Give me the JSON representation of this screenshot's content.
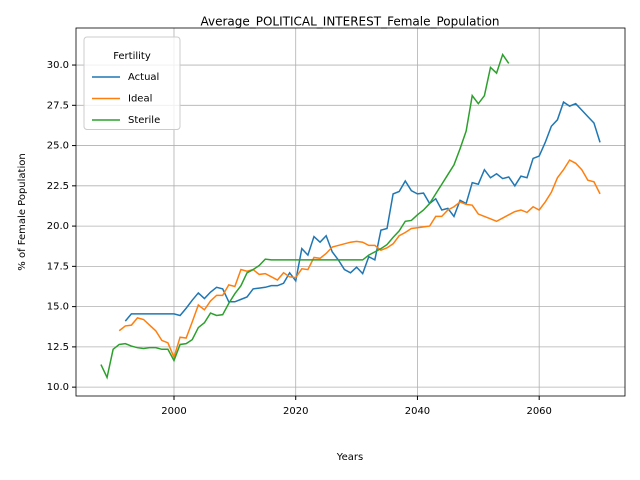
{
  "chart_data": {
    "type": "line",
    "title": "Average_POLITICAL_INTEREST_Female_Population",
    "x_label": "Years",
    "y_label": "% of Female Population",
    "x": [
      1988,
      1989,
      1990,
      1991,
      1992,
      1993,
      1994,
      1995,
      1996,
      1997,
      1998,
      1999,
      2000,
      2001,
      2002,
      2003,
      2004,
      2005,
      2006,
      2007,
      2008,
      2009,
      2010,
      2011,
      2012,
      2013,
      2014,
      2015,
      2016,
      2017,
      2018,
      2019,
      2020,
      2021,
      2022,
      2023,
      2024,
      2025,
      2026,
      2027,
      2028,
      2029,
      2030,
      2031,
      2032,
      2033,
      2034,
      2035,
      2036,
      2037,
      2038,
      2039,
      2040,
      2041,
      2042,
      2043,
      2044,
      2045,
      2046,
      2047,
      2048,
      2049,
      2050,
      2051,
      2052,
      2053,
      2054,
      2055,
      2056,
      2057,
      2058,
      2059,
      2060,
      2061,
      2062,
      2063,
      2064,
      2065,
      2066,
      2067,
      2068,
      2069,
      2070
    ],
    "series": [
      {
        "name": "Actual",
        "color": "#1f77b4",
        "values": [
          null,
          null,
          null,
          null,
          14.1,
          14.55,
          14.55,
          14.55,
          14.55,
          14.55,
          14.55,
          14.55,
          14.55,
          14.45,
          14.9,
          15.4,
          15.85,
          15.5,
          15.9,
          16.2,
          16.1,
          15.3,
          15.3,
          15.45,
          15.6,
          16.1,
          16.15,
          16.2,
          16.3,
          16.3,
          16.45,
          17.1,
          16.6,
          18.6,
          18.2,
          19.35,
          19.0,
          19.4,
          18.4,
          17.9,
          17.3,
          17.1,
          17.45,
          17.05,
          18.1,
          17.9,
          19.75,
          19.85,
          22.0,
          22.15,
          22.8,
          22.2,
          22.0,
          22.05,
          21.4,
          21.7,
          21.0,
          21.1,
          20.6,
          21.6,
          21.4,
          22.7,
          22.6,
          23.5,
          23.0,
          23.25,
          22.95,
          23.05,
          22.5,
          23.1,
          23.0,
          24.2,
          24.35,
          25.2,
          26.2,
          26.6,
          27.7,
          27.45,
          27.6,
          27.2,
          26.8,
          26.4,
          25.2
        ]
      },
      {
        "name": "Ideal",
        "color": "#ff7f0e",
        "values": [
          null,
          null,
          null,
          13.5,
          13.8,
          13.85,
          14.3,
          14.2,
          13.85,
          13.5,
          12.9,
          12.75,
          11.85,
          13.1,
          13.05,
          14.05,
          15.1,
          14.8,
          15.35,
          15.7,
          15.7,
          16.35,
          16.25,
          17.3,
          17.2,
          17.3,
          17.0,
          17.05,
          16.85,
          16.65,
          17.1,
          16.85,
          16.8,
          17.35,
          17.3,
          18.05,
          18.0,
          18.3,
          18.7,
          18.8,
          18.9,
          19.0,
          19.05,
          19.0,
          18.8,
          18.8,
          18.5,
          18.65,
          18.9,
          19.4,
          19.6,
          19.85,
          19.9,
          19.95,
          20.0,
          20.6,
          20.6,
          21.0,
          21.2,
          21.5,
          21.35,
          21.3,
          20.75,
          20.6,
          20.45,
          20.3,
          20.5,
          20.7,
          20.9,
          21.0,
          20.85,
          21.2,
          21.0,
          21.5,
          22.1,
          23.0,
          23.5,
          24.1,
          23.9,
          23.5,
          22.85,
          22.75,
          22.0
        ]
      },
      {
        "name": "Sterile",
        "color": "#2ca02c",
        "values": [
          11.4,
          10.6,
          12.35,
          12.65,
          12.7,
          12.55,
          12.45,
          12.4,
          12.45,
          12.45,
          12.35,
          12.35,
          11.65,
          12.65,
          12.7,
          12.95,
          13.7,
          14.0,
          14.6,
          14.45,
          14.5,
          15.2,
          15.8,
          16.3,
          17.1,
          17.3,
          17.55,
          17.95,
          17.9,
          17.9,
          17.9,
          17.9,
          17.9,
          17.9,
          17.9,
          17.9,
          17.9,
          17.9,
          17.9,
          17.9,
          17.9,
          17.9,
          17.9,
          17.9,
          18.2,
          18.4,
          18.6,
          18.85,
          19.3,
          19.7,
          20.3,
          20.35,
          20.7,
          21.0,
          21.4,
          22.0,
          22.6,
          23.2,
          23.8,
          24.8,
          25.9,
          28.1,
          27.6,
          28.1,
          29.85,
          29.5,
          30.65,
          30.1,
          null,
          null,
          null,
          null,
          null,
          null,
          null,
          null,
          null,
          null,
          null,
          null,
          null,
          null,
          null
        ]
      }
    ],
    "xlim": [
      1983.9,
      2074.1
    ],
    "ylim": [
      9.45,
      32.3
    ],
    "xticks": [
      2000,
      2020,
      2040,
      2060
    ],
    "yticks": [
      {
        "value": 10,
        "label": "10.0"
      },
      12.5,
      {
        "value": 15,
        "label": "15.0"
      },
      17.5,
      {
        "value": 20,
        "label": "20.0"
      },
      22.5,
      {
        "value": 25,
        "label": "25.0"
      },
      27.5,
      {
        "value": 30,
        "label": "30.0"
      }
    ],
    "grid": true,
    "legend": {
      "title": "Fertility",
      "position": "upper left"
    }
  }
}
